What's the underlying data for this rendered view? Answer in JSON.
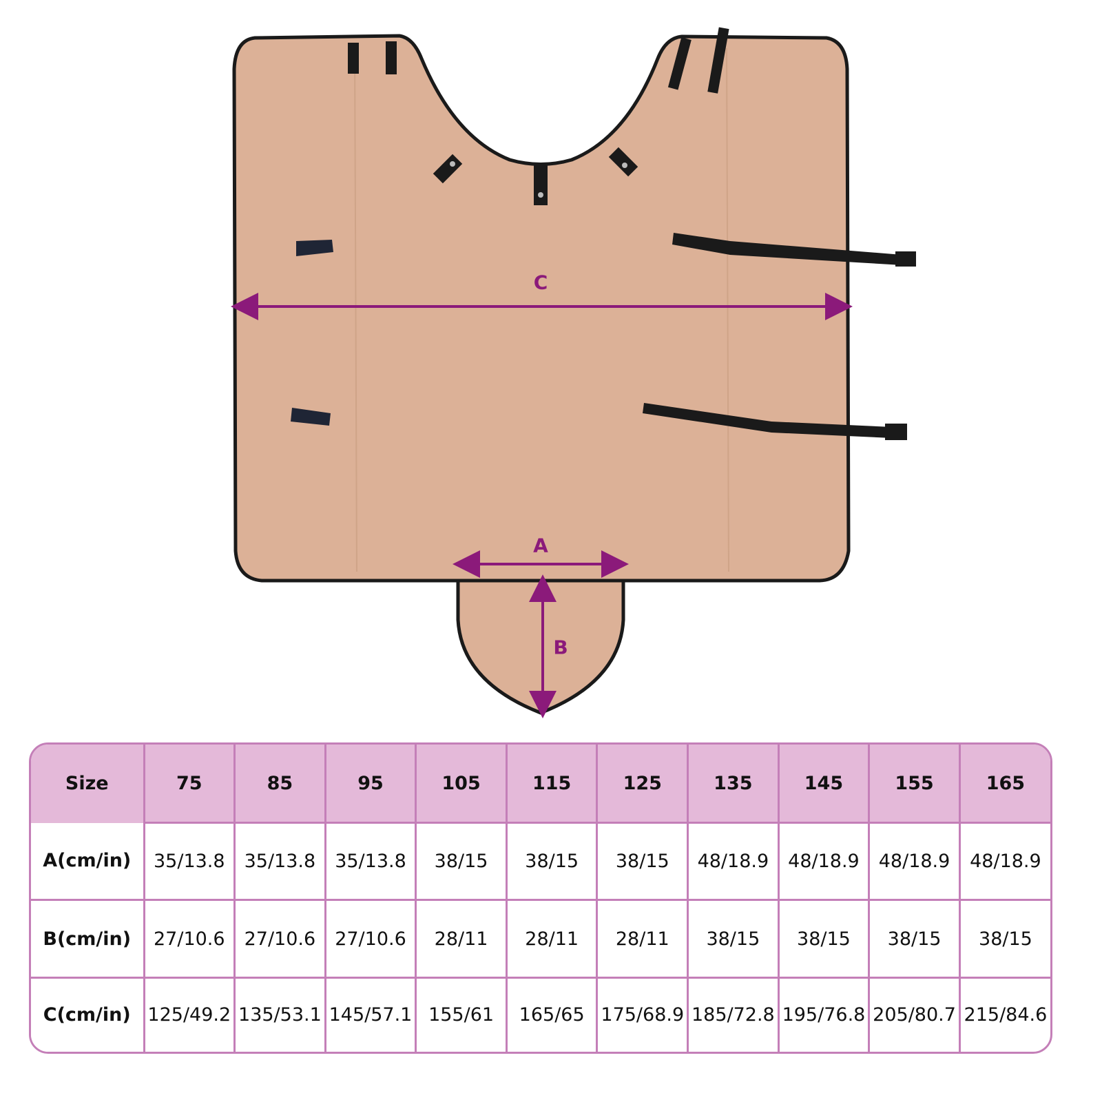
{
  "colors": {
    "blanket": "#dcb197",
    "edge": "#1a1a1a",
    "arrow": "#8b1a7a",
    "header_fill": "#e4b9d9",
    "grid": "#c47fb8"
  },
  "diagram": {
    "labels": {
      "a": "A",
      "b": "B",
      "c": "C"
    }
  },
  "table": {
    "header_label": "Size",
    "sizes": [
      "75",
      "85",
      "95",
      "105",
      "115",
      "125",
      "135",
      "145",
      "155",
      "165"
    ],
    "rows": [
      {
        "label": "A(cm/in)",
        "values": [
          "35/13.8",
          "35/13.8",
          "35/13.8",
          "38/15",
          "38/15",
          "38/15",
          "48/18.9",
          "48/18.9",
          "48/18.9",
          "48/18.9"
        ]
      },
      {
        "label": "B(cm/in)",
        "values": [
          "27/10.6",
          "27/10.6",
          "27/10.6",
          "28/11",
          "28/11",
          "28/11",
          "38/15",
          "38/15",
          "38/15",
          "38/15"
        ]
      },
      {
        "label": "C(cm/in)",
        "values": [
          "125/49.2",
          "135/53.1",
          "145/57.1",
          "155/61",
          "165/65",
          "175/68.9",
          "185/72.8",
          "195/76.8",
          "205/80.7",
          "215/84.6"
        ]
      }
    ]
  }
}
